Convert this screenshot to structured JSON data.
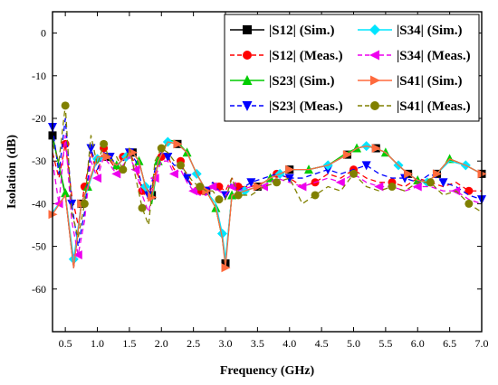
{
  "chart_data": {
    "type": "line",
    "xlabel": "Frequency (GHz)",
    "ylabel": "Isolation (dB)",
    "xlim": [
      0.3,
      7.0
    ],
    "ylim": [
      -70,
      5
    ],
    "xticks": [
      0.5,
      1.0,
      1.5,
      2.0,
      2.5,
      3.0,
      3.5,
      4.0,
      4.5,
      5.0,
      5.5,
      6.0,
      6.5,
      7.0
    ],
    "yticks": [
      0,
      -10,
      -20,
      -30,
      -40,
      -50,
      -60
    ],
    "grid": false,
    "legend_placement": "top-right",
    "series": [
      {
        "name": "S12",
        "legend_label": "|S12| (Sim.)",
        "color": "#000000",
        "dash": "solid",
        "marker": "square",
        "x": [
          0.3,
          0.5,
          0.63,
          0.75,
          0.85,
          1.0,
          1.15,
          1.3,
          1.45,
          1.55,
          1.65,
          1.75,
          1.85,
          1.95,
          2.1,
          2.25,
          2.4,
          2.55,
          2.7,
          2.85,
          2.95,
          3.0,
          3.1,
          3.3,
          3.5,
          3.7,
          3.85,
          4.0,
          4.3,
          4.6,
          4.9,
          5.05,
          5.2,
          5.35,
          5.5,
          5.7,
          5.85,
          6.0,
          6.15,
          6.3,
          6.5,
          6.75,
          7.0
        ],
        "y": [
          -24,
          -38,
          -55,
          -40,
          -36,
          -29,
          -29,
          -31,
          -29,
          -28,
          -30,
          -36,
          -38,
          -30,
          -25.5,
          -26,
          -28,
          -33,
          -37,
          -41,
          -48,
          -54,
          -38,
          -37,
          -36,
          -34,
          -33,
          -32,
          -32,
          -31,
          -28.5,
          -27,
          -26.5,
          -27,
          -28,
          -31,
          -33,
          -34.5,
          -35,
          -33,
          -29.5,
          -31,
          -33
        ]
      },
      {
        "name": "S12",
        "legend_label": "|S12| (Meas.)",
        "color": "#ff0000",
        "dash": "dash",
        "marker": "circle",
        "x": [
          0.3,
          0.4,
          0.5,
          0.6,
          0.7,
          0.8,
          0.9,
          1.0,
          1.1,
          1.2,
          1.3,
          1.4,
          1.5,
          1.6,
          1.7,
          1.8,
          1.9,
          2.0,
          2.1,
          2.2,
          2.3,
          2.4,
          2.5,
          2.6,
          2.7,
          2.8,
          2.9,
          3.0,
          3.1,
          3.2,
          3.4,
          3.6,
          3.8,
          4.0,
          4.2,
          4.4,
          4.6,
          4.8,
          5.0,
          5.2,
          5.4,
          5.6,
          5.8,
          6.0,
          6.2,
          6.4,
          6.6,
          6.8,
          7.0
        ],
        "y": [
          -28,
          -34,
          -26,
          -38,
          -45,
          -36,
          -28,
          -33,
          -27,
          -30,
          -32,
          -29,
          -28,
          -31,
          -37,
          -39,
          -33,
          -29,
          -29,
          -32,
          -30,
          -34,
          -36,
          -37,
          -38,
          -35,
          -36,
          -37,
          -34,
          -36,
          -36,
          -35,
          -33,
          -34,
          -36,
          -35,
          -33,
          -34,
          -32,
          -34,
          -35,
          -35,
          -36,
          -34,
          -35,
          -36,
          -35,
          -37,
          -37
        ]
      },
      {
        "name": "S23",
        "legend_label": "|S23| (Sim.)",
        "color": "#00cc00",
        "dash": "solid",
        "marker": "triangle-up",
        "x": [
          0.3,
          0.5,
          0.63,
          0.75,
          0.85,
          1.0,
          1.15,
          1.3,
          1.45,
          1.55,
          1.65,
          1.75,
          1.85,
          1.95,
          2.1,
          2.25,
          2.4,
          2.55,
          2.7,
          2.85,
          2.95,
          3.0,
          3.1,
          3.3,
          3.5,
          3.7,
          3.85,
          4.0,
          4.3,
          4.6,
          4.9,
          5.05,
          5.2,
          5.35,
          5.5,
          5.7,
          5.85,
          6.0,
          6.15,
          6.3,
          6.5,
          6.75,
          7.0
        ],
        "y": [
          -24.5,
          -37.5,
          -54.5,
          -40,
          -36,
          -29,
          -29,
          -31,
          -29,
          -28,
          -30,
          -36,
          -40,
          -30,
          -25,
          -25.5,
          -28,
          -33,
          -37,
          -41,
          -48,
          -54,
          -38,
          -37,
          -36,
          -34,
          -33,
          -32,
          -32,
          -31,
          -28,
          -27,
          -26.5,
          -27,
          -28,
          -31,
          -33,
          -34.5,
          -35,
          -33,
          -29.5,
          -31,
          -33
        ]
      },
      {
        "name": "S23",
        "legend_label": "|S23| (Meas.)",
        "color": "#0000ff",
        "dash": "dash",
        "marker": "triangle-down",
        "x": [
          0.3,
          0.4,
          0.5,
          0.6,
          0.7,
          0.8,
          0.9,
          1.0,
          1.1,
          1.2,
          1.3,
          1.4,
          1.5,
          1.6,
          1.7,
          1.8,
          1.9,
          2.0,
          2.1,
          2.2,
          2.3,
          2.4,
          2.5,
          2.6,
          2.7,
          2.8,
          2.9,
          3.0,
          3.1,
          3.2,
          3.4,
          3.6,
          3.8,
          4.0,
          4.2,
          4.4,
          4.6,
          4.8,
          5.0,
          5.2,
          5.4,
          5.6,
          5.8,
          6.0,
          6.2,
          6.4,
          6.6,
          6.8,
          7.0
        ],
        "y": [
          -22,
          -33,
          -20,
          -40,
          -50,
          -42,
          -27,
          -32,
          -28,
          -29,
          -31,
          -30,
          -28,
          -30,
          -36,
          -38,
          -32,
          -28,
          -29,
          -31,
          -31,
          -34,
          -37,
          -36,
          -37,
          -35,
          -37,
          -38,
          -35,
          -37,
          -35,
          -34,
          -33,
          -34,
          -34,
          -33,
          -32,
          -33,
          -32,
          -31,
          -33,
          -34,
          -34,
          -35,
          -33,
          -35,
          -36,
          -38,
          -39
        ]
      },
      {
        "name": "S34",
        "legend_label": "|S34| (Sim.)",
        "color": "#00e5ff",
        "dash": "solid",
        "marker": "diamond",
        "x": [
          0.3,
          0.5,
          0.63,
          0.75,
          0.85,
          1.0,
          1.15,
          1.3,
          1.45,
          1.55,
          1.65,
          1.75,
          1.85,
          1.95,
          2.1,
          2.25,
          2.4,
          2.55,
          2.7,
          2.85,
          2.95,
          3.0,
          3.1,
          3.3,
          3.5,
          3.7,
          3.85,
          4.0,
          4.3,
          4.6,
          4.9,
          5.05,
          5.2,
          5.35,
          5.5,
          5.7,
          5.85,
          6.0,
          6.15,
          6.3,
          6.5,
          6.75,
          7.0
        ],
        "y": [
          -42,
          -38,
          -53,
          -40,
          -36.5,
          -29.5,
          -29,
          -31,
          -29,
          -28,
          -30,
          -36,
          -39,
          -30,
          -25.5,
          -26,
          -28,
          -33,
          -37,
          -40,
          -47,
          -53,
          -38,
          -37,
          -36,
          -34,
          -33,
          -32,
          -32,
          -31,
          -28.5,
          -27,
          -26.5,
          -27,
          -28,
          -31,
          -33,
          -34.5,
          -35,
          -33,
          -30,
          -31,
          -33
        ]
      },
      {
        "name": "S34",
        "legend_label": "|S34| (Meas.)",
        "color": "#ee00ee",
        "dash": "dash",
        "marker": "triangle-left",
        "x": [
          0.3,
          0.4,
          0.5,
          0.6,
          0.7,
          0.8,
          0.9,
          1.0,
          1.1,
          1.2,
          1.3,
          1.4,
          1.5,
          1.6,
          1.7,
          1.8,
          1.9,
          2.0,
          2.1,
          2.2,
          2.3,
          2.4,
          2.5,
          2.6,
          2.7,
          2.8,
          2.9,
          3.0,
          3.1,
          3.2,
          3.4,
          3.6,
          3.8,
          4.0,
          4.2,
          4.4,
          4.6,
          4.8,
          5.0,
          5.2,
          5.4,
          5.6,
          5.8,
          6.0,
          6.2,
          6.4,
          6.6,
          6.8,
          7.0
        ],
        "y": [
          -30,
          -40,
          -24,
          -44,
          -52,
          -44,
          -30,
          -34,
          -29,
          -31,
          -33,
          -31,
          -29,
          -32,
          -38,
          -42,
          -34,
          -30,
          -30,
          -33,
          -32,
          -35,
          -37,
          -38,
          -38,
          -36,
          -37,
          -38,
          -36,
          -37,
          -36,
          -36,
          -34,
          -35,
          -36,
          -35,
          -34,
          -35,
          -33,
          -35,
          -36,
          -36,
          -37,
          -36,
          -36,
          -37,
          -37,
          -39,
          -40
        ]
      },
      {
        "name": "S41",
        "legend_label": "|S41| (Sim.)",
        "color": "#ff6a3d",
        "dash": "solid",
        "marker": "triangle-right",
        "x": [
          0.3,
          0.5,
          0.63,
          0.75,
          0.85,
          1.0,
          1.15,
          1.3,
          1.45,
          1.55,
          1.65,
          1.75,
          1.85,
          1.95,
          2.1,
          2.25,
          2.4,
          2.55,
          2.7,
          2.85,
          2.95,
          3.0,
          3.1,
          3.3,
          3.5,
          3.7,
          3.85,
          4.0,
          4.3,
          4.6,
          4.9,
          5.05,
          5.2,
          5.35,
          5.5,
          5.7,
          5.85,
          6.0,
          6.15,
          6.3,
          6.5,
          6.75,
          7.0
        ],
        "y": [
          -42.5,
          -38,
          -55,
          -40,
          -36,
          -29,
          -29,
          -31,
          -29,
          -28,
          -30,
          -36,
          -38.5,
          -30,
          -25.5,
          -26,
          -28,
          -33,
          -37,
          -41,
          -48,
          -55,
          -38,
          -37,
          -36,
          -34,
          -33,
          -32,
          -32,
          -31,
          -28.5,
          -27,
          -26.5,
          -27,
          -28,
          -31,
          -33,
          -34.5,
          -35,
          -33,
          -29.5,
          -31,
          -33
        ]
      },
      {
        "name": "S41",
        "legend_label": "|S41| (Meas.)",
        "color": "#808000",
        "dash": "dash",
        "marker": "circle",
        "x": [
          0.3,
          0.4,
          0.5,
          0.6,
          0.7,
          0.8,
          0.9,
          1.0,
          1.1,
          1.2,
          1.3,
          1.4,
          1.5,
          1.6,
          1.7,
          1.8,
          1.9,
          2.0,
          2.1,
          2.2,
          2.3,
          2.4,
          2.5,
          2.6,
          2.7,
          2.8,
          2.9,
          3.0,
          3.1,
          3.2,
          3.4,
          3.6,
          3.8,
          4.0,
          4.2,
          4.4,
          4.6,
          4.8,
          5.0,
          5.2,
          5.4,
          5.6,
          5.8,
          6.0,
          6.2,
          6.4,
          6.6,
          6.8,
          7.0
        ],
        "y": [
          -26,
          -30,
          -17,
          -42,
          -48,
          -40,
          -24,
          -31,
          -26,
          -30,
          -29,
          -32,
          -27,
          -34,
          -41,
          -45,
          -30,
          -27,
          -28,
          -30,
          -31,
          -33,
          -35,
          -36,
          -37,
          -37,
          -39,
          -39,
          -34,
          -38,
          -38,
          -36,
          -35,
          -34,
          -40,
          -38,
          -36,
          -37,
          -33,
          -36,
          -37,
          -36,
          -37,
          -35,
          -35,
          -38,
          -37,
          -40,
          -42
        ]
      }
    ]
  }
}
